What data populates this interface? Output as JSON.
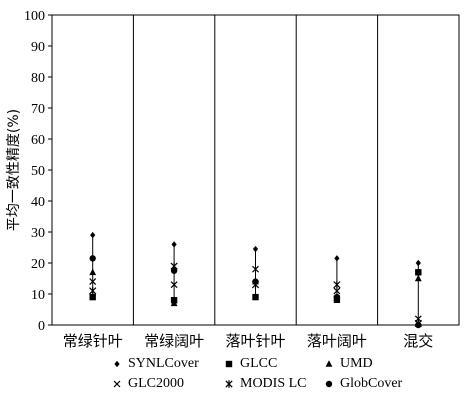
{
  "chart_data": {
    "type": "scatter",
    "ylabel": "平均一致性精度(%)",
    "xlabel": "",
    "ylim": [
      0,
      100
    ],
    "yticks": [
      0,
      10,
      20,
      30,
      40,
      50,
      60,
      70,
      80,
      90,
      100
    ],
    "categories": [
      "常绿针叶",
      "常绿阔叶",
      "落叶针叶",
      "落叶阔叶",
      "混交"
    ],
    "grid": false,
    "legend_position": "bottom",
    "series": [
      {
        "name": "SYNLCover",
        "marker": "diamond",
        "values": [
          29,
          26,
          24.5,
          21.5,
          20
        ]
      },
      {
        "name": "GLCC",
        "marker": "square",
        "values": [
          9,
          8,
          9,
          8.5,
          17
        ]
      },
      {
        "name": "UMD",
        "marker": "triangle",
        "values": [
          17,
          7,
          14,
          8,
          15
        ]
      },
      {
        "name": "GLC2000",
        "marker": "x",
        "values": [
          14,
          13,
          18,
          11,
          2
        ]
      },
      {
        "name": "MODIS LC",
        "marker": "star",
        "values": [
          11,
          19,
          13,
          13,
          0.5
        ]
      },
      {
        "name": "GlobCover",
        "marker": "circle",
        "values": [
          21.5,
          17.5,
          14,
          9,
          0
        ]
      }
    ]
  }
}
